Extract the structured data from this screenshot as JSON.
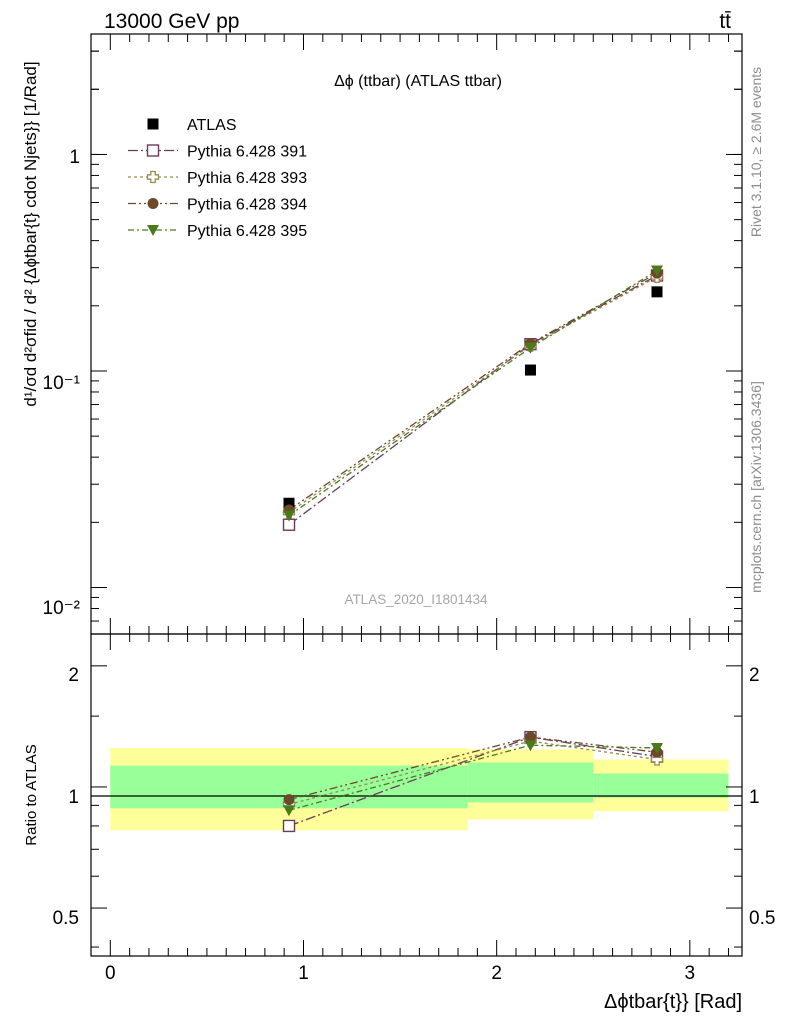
{
  "header": {
    "left": "13000 GeV pp",
    "right": "tt̄"
  },
  "side_labels": {
    "rivet": "Rivet 3.1.10, ≥ 2.6M events",
    "mcplots": "mcplots.cern.ch [arXiv:1306.3436]"
  },
  "chart_data": [
    {
      "type": "line",
      "title": "Δϕ (ttbar) (ATLAS ttbar)",
      "watermark": "ATLAS_2020_I1801434",
      "ylabel": "d¹/σd d²σfid / d² {Δϕtbar{t} cdot Njets}} [1/Rad]",
      "xlim": [
        -0.1,
        3.27
      ],
      "ylim": [
        0.0061,
        3.6
      ],
      "yscale": "log",
      "ytick_labels": [
        "1",
        "10⁻¹",
        "10⁻²"
      ],
      "legend": "top-left",
      "x": [
        0.925,
        2.175,
        2.83
      ],
      "series": [
        {
          "name": "ATLAS",
          "values": [
            0.0245,
            0.101,
            0.232
          ],
          "color": "#000000",
          "marker": "square-filled"
        },
        {
          "name": "Pythia 6.428 391",
          "values": [
            0.0195,
            0.133,
            0.276
          ],
          "color": "#6b3b5a",
          "marker": "square-open"
        },
        {
          "name": "Pythia 6.428 393",
          "values": [
            0.0222,
            0.131,
            0.272
          ],
          "color": "#9a8a50",
          "marker": "cross-open"
        },
        {
          "name": "Pythia 6.428 394",
          "values": [
            0.0228,
            0.134,
            0.283
          ],
          "color": "#6b4a2a",
          "marker": "circle-filled"
        },
        {
          "name": "Pythia 6.428 395",
          "values": [
            0.0215,
            0.128,
            0.291
          ],
          "color": "#4a7a1a",
          "marker": "triangle-down-filled"
        }
      ]
    },
    {
      "type": "line",
      "ylabel": "Ratio to ATLAS",
      "xlabel": "Δϕtbar{t}} [Rad]",
      "xlim": [
        -0.1,
        3.27
      ],
      "ylim": [
        0.38,
        2.4
      ],
      "ytick_labels": [
        "2",
        "1",
        "0.5"
      ],
      "xtick_labels": [
        "0",
        "1",
        "2",
        "3"
      ],
      "bands": {
        "edges": [
          0,
          1.85,
          2.5,
          3.2
        ],
        "green": [
          [
            0.885,
            1.13
          ],
          [
            0.915,
            1.15
          ],
          [
            0.94,
            1.08
          ]
        ],
        "yellow": [
          [
            0.78,
            1.25
          ],
          [
            0.83,
            1.24
          ],
          [
            0.87,
            1.17
          ]
        ]
      },
      "x": [
        0.925,
        2.175,
        2.83
      ],
      "series": [
        {
          "name": "Pythia 6.428 391",
          "values": [
            0.8,
            1.33,
            1.19
          ],
          "color": "#6b3b5a",
          "marker": "square-open"
        },
        {
          "name": "Pythia 6.428 393",
          "values": [
            0.905,
            1.3,
            1.17
          ],
          "color": "#9a8a50",
          "marker": "cross-open"
        },
        {
          "name": "Pythia 6.428 394",
          "values": [
            0.93,
            1.33,
            1.22
          ],
          "color": "#6b4a2a",
          "marker": "circle-filled"
        },
        {
          "name": "Pythia 6.428 395",
          "values": [
            0.875,
            1.27,
            1.25
          ],
          "color": "#4a7a1a",
          "marker": "triangle-down-filled"
        }
      ]
    }
  ]
}
